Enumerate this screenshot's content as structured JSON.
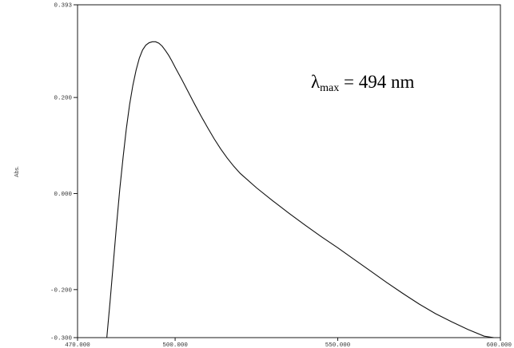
{
  "chart_data": {
    "type": "line",
    "title": "",
    "xlabel": "",
    "ylabel": "Abs.",
    "xlim": [
      470,
      600
    ],
    "ylim": [
      -0.3,
      0.393
    ],
    "x_ticks": [
      470,
      500,
      550,
      600
    ],
    "x_tick_labels": [
      "470.000",
      "500.000",
      "550.000",
      "600.000"
    ],
    "y_ticks": [
      0.393,
      0.2,
      0.0,
      -0.2,
      -0.3
    ],
    "y_tick_labels": [
      "0.393",
      "0.200",
      "0.000",
      "-0.200",
      "-0.300"
    ],
    "grid": false,
    "annotation": {
      "symbol": "λ",
      "subscript": "max",
      "rest": " = 494 nm"
    },
    "series": [
      {
        "color": "#111111",
        "x": [
          479,
          480,
          481,
          482,
          483,
          484,
          485,
          486,
          487,
          488,
          489,
          490,
          491,
          492,
          493,
          494,
          495,
          496,
          497,
          498,
          499,
          500,
          502,
          504,
          506,
          508,
          510,
          512,
          514,
          516,
          518,
          520,
          525,
          530,
          535,
          540,
          545,
          550,
          555,
          560,
          565,
          570,
          575,
          580,
          585,
          590,
          595,
          598
        ],
        "y": [
          -0.3,
          -0.225,
          -0.145,
          -0.065,
          0.01,
          0.075,
          0.135,
          0.185,
          0.225,
          0.257,
          0.282,
          0.299,
          0.309,
          0.314,
          0.316,
          0.316,
          0.313,
          0.307,
          0.298,
          0.288,
          0.276,
          0.263,
          0.238,
          0.212,
          0.186,
          0.161,
          0.137,
          0.114,
          0.093,
          0.074,
          0.057,
          0.042,
          0.012,
          -0.015,
          -0.041,
          -0.066,
          -0.09,
          -0.113,
          -0.137,
          -0.161,
          -0.185,
          -0.208,
          -0.23,
          -0.25,
          -0.267,
          -0.283,
          -0.297,
          -0.3
        ]
      }
    ]
  }
}
